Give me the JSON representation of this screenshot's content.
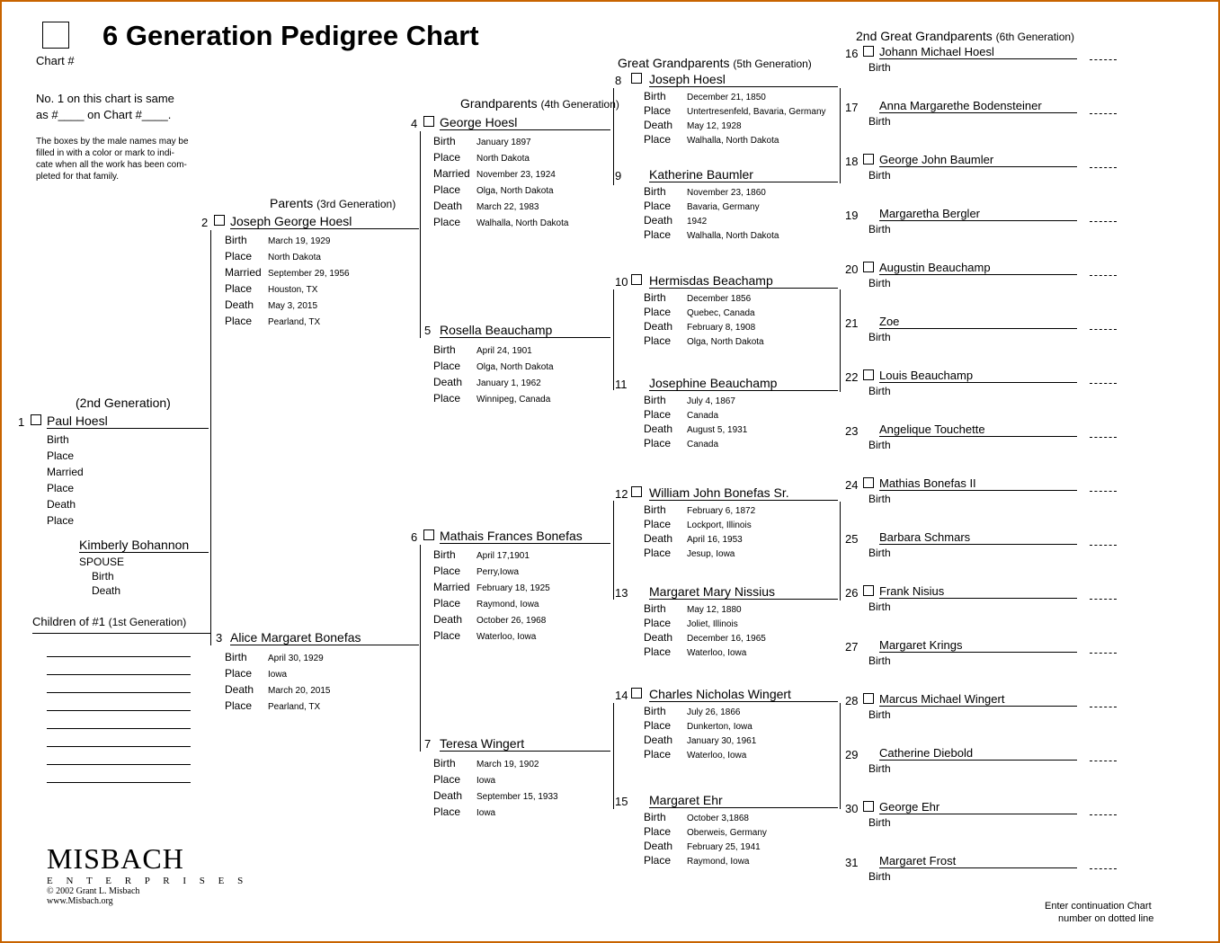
{
  "title": "6 Generation Pedigree Chart",
  "chart_label": "Chart #",
  "note1a": "No. 1 on this chart is same",
  "note1b": "as #____ on Chart #____.",
  "note2a": "The boxes by the male names may be",
  "note2b": "filled in with a color or mark to indi-",
  "note2c": "cate when all the work has been com-",
  "note2d": "pleted for that family.",
  "headers": {
    "gen2": "(2nd Generation)",
    "gen3": "Parents",
    "gen3sub": "(3rd Generation)",
    "gen4": "Grandparents",
    "gen4sub": "(4th Generation)",
    "gen5": "Great Grandparents",
    "gen5sub": "(5th Generation)",
    "gen6": "2nd Great Grandparents",
    "gen6sub": "(6th Generation)"
  },
  "spouse_label": "SPOUSE",
  "children_label": "Children of #1",
  "children_sub": "(1st Generation)",
  "cont_note1": "Enter continuation Chart",
  "cont_note2": "number on dotted line",
  "logo": {
    "name": "MISBACH",
    "ent": "E N T E R P R I S E S",
    "copy": "© 2002 Grant L. Misbach",
    "url": "www.Misbach.org"
  },
  "labels": {
    "birth": "Birth",
    "place": "Place",
    "married": "Married",
    "death": "Death"
  },
  "p1": {
    "num": "1",
    "name": "Paul Hoesl",
    "birth": "",
    "place1": "",
    "married": "",
    "place2": "",
    "death": "",
    "place3": ""
  },
  "spouse": {
    "name": "Kimberly Bohannon",
    "birth": "",
    "death": ""
  },
  "p2": {
    "num": "2",
    "name": "Joseph George Hoesl",
    "birth": "March 19, 1929",
    "place1": "North Dakota",
    "married": "September 29, 1956",
    "place2": "Houston, TX",
    "death": "May 3, 2015",
    "place3": "Pearland, TX"
  },
  "p3": {
    "num": "3",
    "name": "Alice Margaret Bonefas",
    "birth": "April 30, 1929",
    "place1": "Iowa",
    "death": "March 20, 2015",
    "place2": "Pearland, TX"
  },
  "p4": {
    "num": "4",
    "name": "George Hoesl",
    "birth": "January 1897",
    "place1": "North Dakota",
    "married": "November 23, 1924",
    "place2": "Olga, North Dakota",
    "death": "March 22, 1983",
    "place3": "Walhalla, North Dakota"
  },
  "p5": {
    "num": "5",
    "name": "Rosella Beauchamp",
    "birth": "April 24, 1901",
    "place1": "Olga, North Dakota",
    "death": "January 1, 1962",
    "place2": "Winnipeg, Canada"
  },
  "p6": {
    "num": "6",
    "name": "Mathais Frances Bonefas",
    "birth": "April 17,1901",
    "place1": "Perry,Iowa",
    "married": "February 18, 1925",
    "place2": "Raymond, Iowa",
    "death": "October 26, 1968",
    "place3": "Waterloo, Iowa"
  },
  "p7": {
    "num": "7",
    "name": "Teresa Wingert",
    "birth": "March 19, 1902",
    "place1": "Iowa",
    "death": "September 15, 1933",
    "place2": "Iowa"
  },
  "p8": {
    "num": "8",
    "name": "Joseph Hoesl",
    "birth": "December 21, 1850",
    "place1": "Untertresenfeld, Bavaria, Germany",
    "death": "May 12, 1928",
    "place2": "Walhalla, North Dakota"
  },
  "p9": {
    "num": "9",
    "name": "Katherine Baumler",
    "birth": "November 23, 1860",
    "place1": "Bavaria, Germany",
    "death": "1942",
    "place2": "Walhalla, North Dakota"
  },
  "p10": {
    "num": "10",
    "name": "Hermisdas Beachamp",
    "birth": "December 1856",
    "place1": "Quebec, Canada",
    "death": "February 8, 1908",
    "place2": "Olga, North Dakota"
  },
  "p11": {
    "num": "11",
    "name": "Josephine Beauchamp",
    "birth": "July 4, 1867",
    "place1": "Canada",
    "death": "August 5, 1931",
    "place2": "Canada"
  },
  "p12": {
    "num": "12",
    "name": "William John Bonefas Sr.",
    "birth": "February 6, 1872",
    "place1": "Lockport, Illinois",
    "death": "April 16, 1953",
    "place2": "Jesup, Iowa"
  },
  "p13": {
    "num": "13",
    "name": "Margaret Mary Nissius",
    "birth": "May 12, 1880",
    "place1": "Joliet, Illinois",
    "death": "December 16, 1965",
    "place2": "Waterloo, Iowa"
  },
  "p14": {
    "num": "14",
    "name": "Charles Nicholas Wingert",
    "birth": "July 26, 1866",
    "place1": "Dunkerton, Iowa",
    "death": "January 30, 1961",
    "place2": "Waterloo, Iowa"
  },
  "p15": {
    "num": "15",
    "name": "Margaret Ehr",
    "birth": "October 3,1868",
    "place1": "Oberweis, Germany",
    "death": "February 25, 1941",
    "place2": "Raymond, Iowa"
  },
  "p16": {
    "num": "16",
    "name": "Johann Michael Hoesl"
  },
  "p17": {
    "num": "17",
    "name": "Anna Margarethe Bodensteiner"
  },
  "p18": {
    "num": "18",
    "name": "George John Baumler"
  },
  "p19": {
    "num": "19",
    "name": "Margaretha Bergler"
  },
  "p20": {
    "num": "20",
    "name": "Augustin Beauchamp"
  },
  "p21": {
    "num": "21",
    "name": "Zoe"
  },
  "p22": {
    "num": "22",
    "name": "Louis Beauchamp"
  },
  "p23": {
    "num": "23",
    "name": "Angelique Touchette"
  },
  "p24": {
    "num": "24",
    "name": "Mathias Bonefas II"
  },
  "p25": {
    "num": "25",
    "name": "Barbara Schmars"
  },
  "p26": {
    "num": "26",
    "name": "Frank Nisius"
  },
  "p27": {
    "num": "27",
    "name": "Margaret Krings"
  },
  "p28": {
    "num": "28",
    "name": "Marcus Michael Wingert"
  },
  "p29": {
    "num": "29",
    "name": "Catherine Diebold"
  },
  "p30": {
    "num": "30",
    "name": "George Ehr"
  },
  "p31": {
    "num": "31",
    "name": "Margaret Frost"
  }
}
